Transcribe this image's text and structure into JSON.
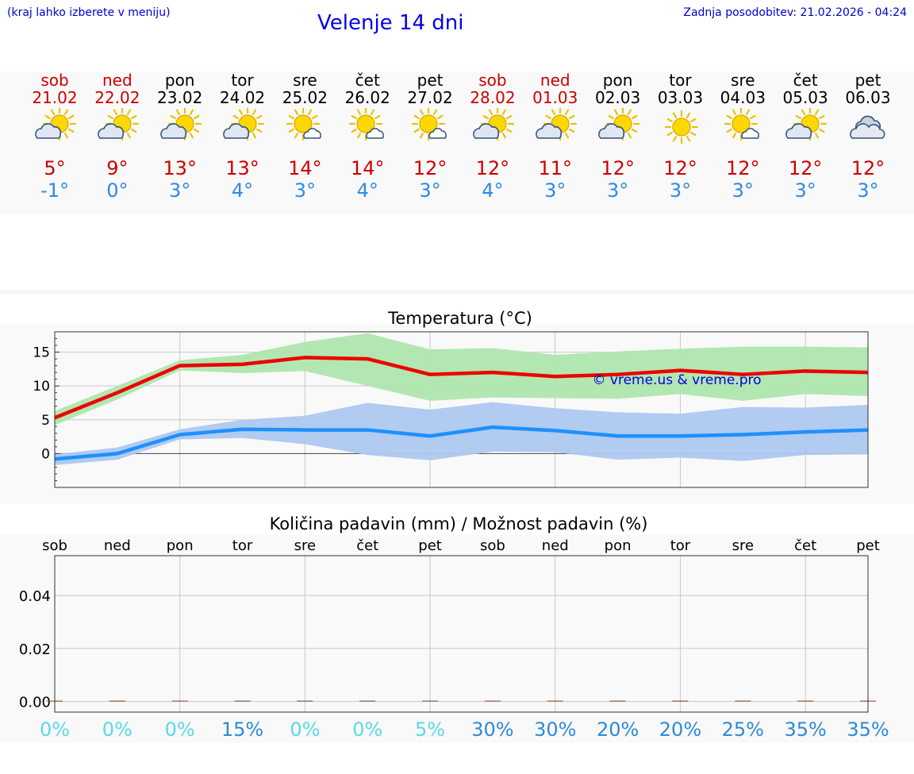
{
  "header": {
    "hint": "(kraj lahko izberete v meniju)",
    "title": "Velenje 14 dni",
    "updated": "Zadnja posodobitev: 21.02.2026 - 04:24"
  },
  "days": [
    {
      "name": "sob",
      "date": "21.02",
      "weekend": true,
      "icon": "cloud-sun-icon",
      "tmax": "5°",
      "tmin": "-1°"
    },
    {
      "name": "ned",
      "date": "22.02",
      "weekend": true,
      "icon": "cloud-sun-icon",
      "tmax": "9°",
      "tmin": "0°"
    },
    {
      "name": "pon",
      "date": "23.02",
      "weekend": false,
      "icon": "cloud-sun-icon",
      "tmax": "13°",
      "tmin": "3°"
    },
    {
      "name": "tor",
      "date": "24.02",
      "weekend": false,
      "icon": "cloud-sun-icon",
      "tmax": "13°",
      "tmin": "4°"
    },
    {
      "name": "sre",
      "date": "25.02",
      "weekend": false,
      "icon": "sun-cloud-small-icon",
      "tmax": "14°",
      "tmin": "3°"
    },
    {
      "name": "čet",
      "date": "26.02",
      "weekend": false,
      "icon": "sun-cloud-small-icon",
      "tmax": "14°",
      "tmin": "4°"
    },
    {
      "name": "pet",
      "date": "27.02",
      "weekend": false,
      "icon": "sun-cloud-small-icon",
      "tmax": "12°",
      "tmin": "3°"
    },
    {
      "name": "sob",
      "date": "28.02",
      "weekend": true,
      "icon": "cloud-sun-icon",
      "tmax": "12°",
      "tmin": "4°"
    },
    {
      "name": "ned",
      "date": "01.03",
      "weekend": true,
      "icon": "cloud-sun-icon",
      "tmax": "11°",
      "tmin": "3°"
    },
    {
      "name": "pon",
      "date": "02.03",
      "weekend": false,
      "icon": "cloud-sun-icon",
      "tmax": "12°",
      "tmin": "3°"
    },
    {
      "name": "tor",
      "date": "03.03",
      "weekend": false,
      "icon": "sun-icon",
      "tmax": "12°",
      "tmin": "3°"
    },
    {
      "name": "sre",
      "date": "04.03",
      "weekend": false,
      "icon": "sun-cloud-small-icon",
      "tmax": "12°",
      "tmin": "3°"
    },
    {
      "name": "čet",
      "date": "05.03",
      "weekend": false,
      "icon": "cloud-sun-icon",
      "tmax": "12°",
      "tmin": "3°"
    },
    {
      "name": "pet",
      "date": "06.03",
      "weekend": false,
      "icon": "cloudy-icon",
      "tmax": "12°",
      "tmin": "3°"
    }
  ],
  "colors": {
    "max_line": "#ee0000",
    "max_band": "#aee6ae",
    "min_line": "#1e90ff",
    "min_band": "#adc8f0",
    "weekend": "#cc0000",
    "pct_low": "#5ad8e8",
    "pct_high": "#2e8ad6"
  },
  "chart_data": [
    {
      "type": "line",
      "title": "Temperatura (°C)",
      "watermark": "© vreme.us & vreme.pro",
      "ylim": [
        -5,
        18
      ],
      "yticks": [
        0,
        5,
        10,
        15
      ],
      "x": [
        0,
        1,
        2,
        3,
        4,
        5,
        6,
        7,
        8,
        9,
        10,
        11,
        12,
        13
      ],
      "series": [
        {
          "name": "max",
          "values": [
            5.3,
            9.0,
            13.0,
            13.2,
            14.2,
            14.0,
            11.7,
            12.0,
            11.4,
            11.7,
            12.3,
            11.7,
            12.2,
            12.0
          ],
          "band_low": [
            4.2,
            8.0,
            12.3,
            11.9,
            12.2,
            10.0,
            7.8,
            8.3,
            8.2,
            8.1,
            8.8,
            7.8,
            8.8,
            8.5
          ],
          "band_high": [
            6.3,
            10.0,
            13.8,
            14.6,
            16.5,
            17.8,
            15.4,
            15.6,
            14.6,
            15.1,
            15.5,
            15.8,
            15.8,
            15.7
          ]
        },
        {
          "name": "min",
          "values": [
            -0.8,
            0.0,
            2.8,
            3.6,
            3.5,
            3.5,
            2.6,
            3.9,
            3.4,
            2.6,
            2.6,
            2.8,
            3.2,
            3.5
          ],
          "band_low": [
            -1.7,
            -0.9,
            2.1,
            2.3,
            1.4,
            -0.2,
            -1.0,
            0.3,
            0.2,
            -0.9,
            -0.6,
            -1.1,
            -0.2,
            -0.1
          ],
          "band_high": [
            -0.1,
            0.9,
            3.6,
            5.0,
            5.6,
            7.5,
            6.5,
            7.6,
            6.7,
            6.1,
            5.9,
            6.9,
            6.8,
            7.2
          ]
        }
      ]
    },
    {
      "type": "bar",
      "title": "Količina padavin (mm) / Možnost padavin (%)",
      "categories": [
        "sob",
        "ned",
        "pon",
        "tor",
        "sre",
        "čet",
        "pet",
        "sob",
        "ned",
        "pon",
        "tor",
        "sre",
        "čet",
        "pet"
      ],
      "values_mm": [
        0,
        0,
        0,
        0,
        0,
        0,
        0,
        0,
        0,
        0,
        0,
        0,
        0,
        0
      ],
      "chance_pct": [
        0,
        0,
        0,
        15,
        0,
        0,
        5,
        30,
        30,
        20,
        20,
        25,
        35,
        35
      ],
      "chance_labels": [
        "0%",
        "0%",
        "0%",
        "15%",
        "0%",
        "0%",
        "5%",
        "30%",
        "30%",
        "20%",
        "20%",
        "25%",
        "35%",
        "35%"
      ],
      "ylim": [
        -0.004,
        0.055
      ],
      "yticks": [
        0.0,
        0.02,
        0.04
      ],
      "ytick_labels": [
        "0.00",
        "0.02",
        "0.04"
      ]
    }
  ]
}
